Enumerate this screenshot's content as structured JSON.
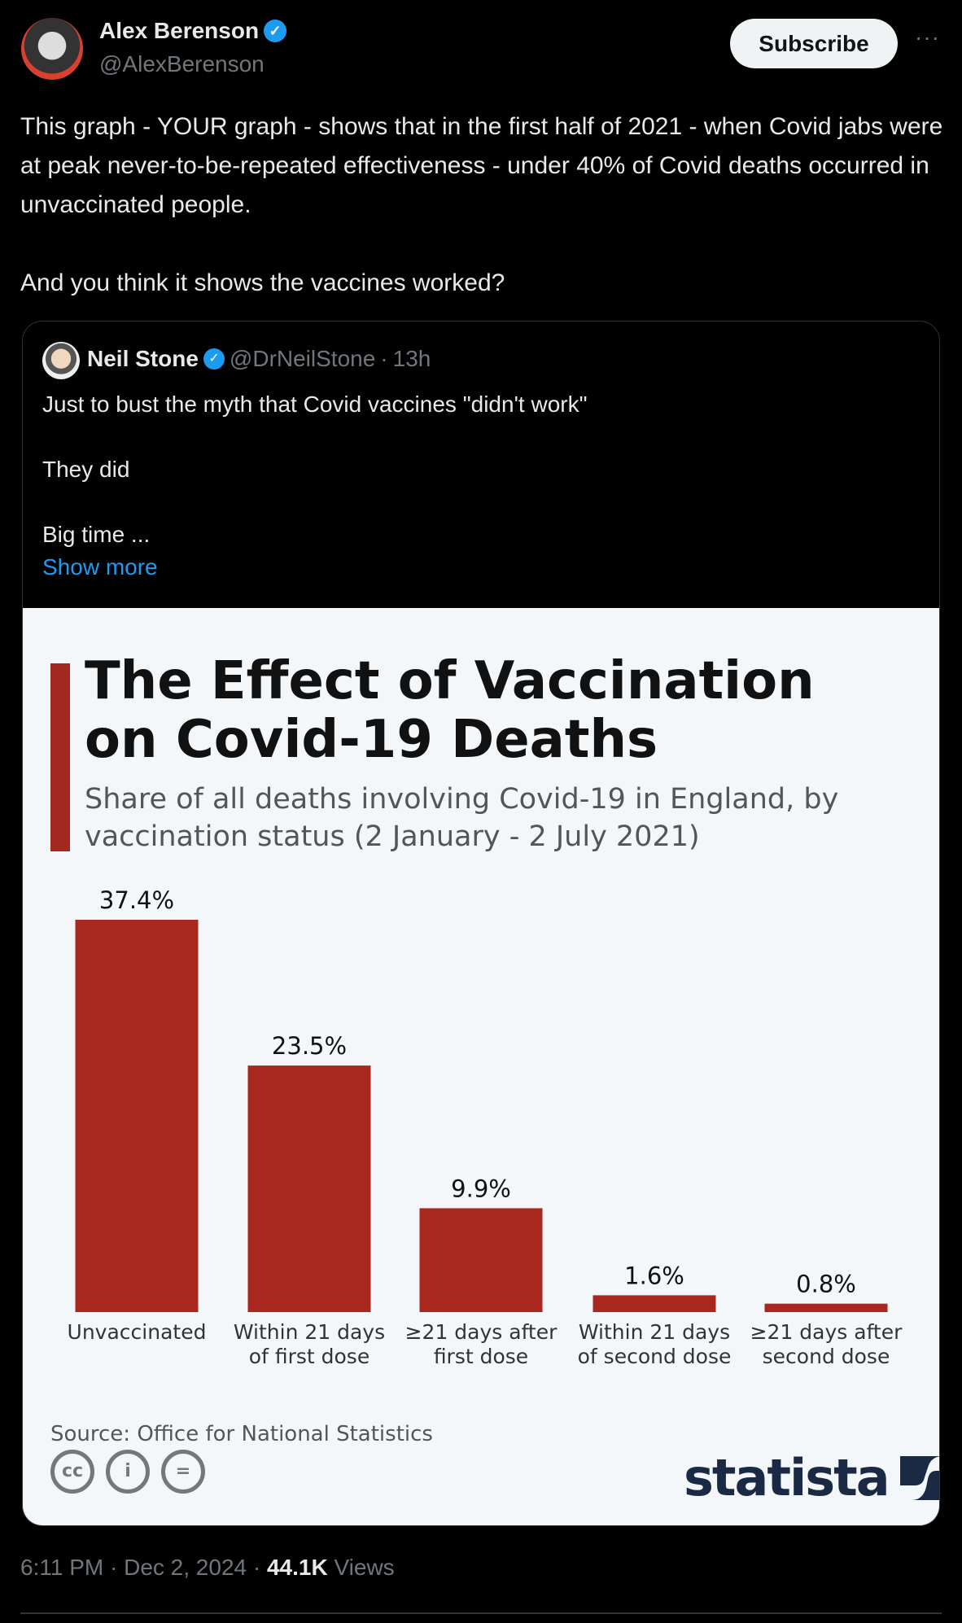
{
  "author": {
    "name": "Alex Berenson",
    "handle": "@AlexBerenson",
    "subscribe_label": "Subscribe",
    "more_label": "···"
  },
  "tweet": {
    "paragraphs": [
      "This graph - YOUR graph - shows that in the first half of 2021 - when Covid jabs were at peak never-to-be-repeated effectiveness - under 40% of Covid deaths occurred in unvaccinated people.",
      "And you think it shows the vaccines worked?"
    ]
  },
  "quote": {
    "name": "Neil Stone",
    "handle": "@DrNeilStone",
    "sep": "·",
    "time": "13h",
    "lines": [
      "Just to bust the myth that Covid vaccines \"didn't work\"",
      "They did",
      "Big time ..."
    ],
    "show_more": "Show more"
  },
  "chart_data": {
    "type": "bar",
    "title": "The Effect of Vaccination on Covid-19 Deaths",
    "subtitle": "Share of all deaths involving Covid-19 in England, by vaccination status (2 January - 2 July 2021)",
    "categories": [
      "Unvaccinated",
      "Within 21 days of first dose",
      "≥21 days after first dose",
      "Within 21 days of second dose",
      "≥21 days after second dose"
    ],
    "category_lines": [
      [
        "Unvaccinated"
      ],
      [
        "Within 21 days",
        "of first dose"
      ],
      [
        "≥21 days after",
        "first dose"
      ],
      [
        "Within 21 days",
        "of second dose"
      ],
      [
        "≥21 days after",
        "second dose"
      ]
    ],
    "values": [
      37.4,
      23.5,
      9.9,
      1.6,
      0.8
    ],
    "value_labels": [
      "37.4%",
      "23.5%",
      "9.9%",
      "1.6%",
      "0.8%"
    ],
    "unit": "%",
    "ylim": [
      0,
      37.4
    ],
    "grid": false,
    "bar_color": "#a8281f",
    "source": "Source: Office for National Statistics",
    "brand": "statista",
    "license_icons": [
      "cc",
      "by",
      "nd"
    ]
  },
  "footer": {
    "time": "6:11 PM",
    "date": "Dec 2, 2024",
    "views_count": "44.1K",
    "views_label": "Views"
  }
}
